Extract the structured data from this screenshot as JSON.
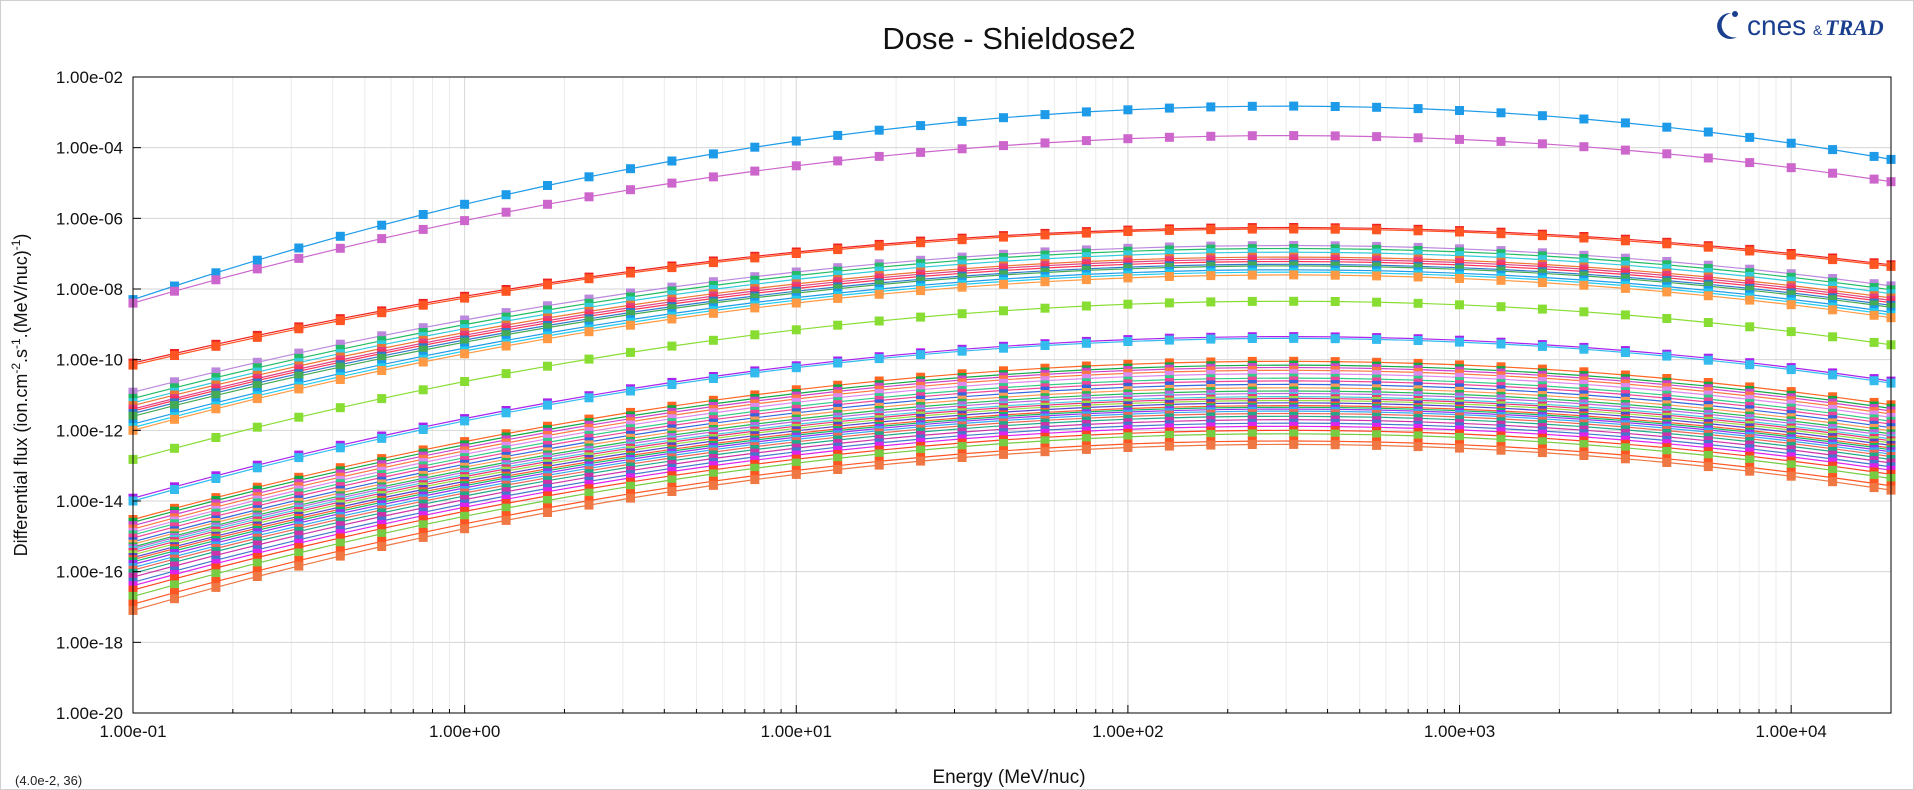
{
  "logo": {
    "brand": "cnes",
    "amp": "&",
    "partner": "TRAD"
  },
  "status": {
    "coords": "(4.0e-2, 36)"
  },
  "chart_data": {
    "type": "line",
    "title": "Dose - Shieldose2",
    "xlabel": "Energy (MeV/nuc)",
    "ylabel_parts": [
      "Differential flux (ion.cm",
      "-2",
      ".s",
      "-1",
      ".(MeV/nuc)",
      "-1",
      ")"
    ],
    "x_scale": "log",
    "y_scale": "log",
    "xlim": [
      0.1,
      20000
    ],
    "ylim": [
      1e-20,
      0.01
    ],
    "x_ticks": [
      0.1,
      1,
      10,
      100,
      1000,
      10000
    ],
    "x_tick_labels": [
      "1.00e-01",
      "1.00e+00",
      "1.00e+01",
      "1.00e+02",
      "1.00e+03",
      "1.00e+04"
    ],
    "y_ticks": [
      0.01,
      0.0001,
      1e-06,
      1e-08,
      1e-10,
      1e-12,
      1e-14,
      1e-16,
      1e-18,
      1e-20
    ],
    "y_tick_labels": [
      "1.00e-02",
      "1.00e-04",
      "1.00e-06",
      "1.00e-08",
      "1.00e-10",
      "1.00e-12",
      "1.00e-14",
      "1.00e-16",
      "1.00e-18",
      "1.00e-20"
    ],
    "grid": true,
    "legend": "none",
    "marker": "square",
    "x": [
      0.1,
      0.1334,
      0.1778,
      0.2371,
      0.3162,
      0.4217,
      0.5623,
      0.7499,
      1.0,
      1.3335,
      1.7783,
      2.3714,
      3.1623,
      4.217,
      5.6234,
      7.4989,
      10.0,
      13.335,
      17.783,
      23.714,
      31.623,
      42.17,
      56.234,
      74.989,
      100.0,
      133.35,
      177.83,
      237.14,
      316.23,
      421.7,
      562.34,
      749.89,
      1000.0,
      1333.5,
      1778.3,
      2371.4,
      3162.3,
      4217.0,
      5623.4,
      7498.9,
      10000.0,
      13335.0,
      17783.0,
      20000.0
    ],
    "series": [
      {
        "color": "#1e9be8",
        "y_at_0.1": 5e-09,
        "peak": 0.0015
      },
      {
        "color": "#cc66cc",
        "y_at_0.1": 4e-09,
        "peak": 0.00022
      },
      {
        "color": "#ee2222",
        "y_at_0.1": 8e-11,
        "peak": 5.5e-07
      },
      {
        "color": "#ff5522",
        "y_at_0.1": 7e-11,
        "peak": 5e-07
      },
      {
        "color": "#bb88dd",
        "y_at_0.1": 1.2e-11,
        "peak": 1.7e-07
      },
      {
        "color": "#22bb66",
        "y_at_0.1": 8e-12,
        "peak": 1.4e-07
      },
      {
        "color": "#33ccdd",
        "y_at_0.1": 6e-12,
        "peak": 1.1e-07
      },
      {
        "color": "#ee7733",
        "y_at_0.1": 5e-12,
        "peak": 8e-08
      },
      {
        "color": "#dd4488",
        "y_at_0.1": 4e-12,
        "peak": 7e-08
      },
      {
        "color": "#ff3355",
        "y_at_0.1": 3.5e-12,
        "peak": 6e-08
      },
      {
        "color": "#3377cc",
        "y_at_0.1": 3e-12,
        "peak": 5e-08
      },
      {
        "color": "#44aa55",
        "y_at_0.1": 2.5e-12,
        "peak": 4.5e-08
      },
      {
        "color": "#1e9be8",
        "y_at_0.1": 1.5e-12,
        "peak": 3.5e-08
      },
      {
        "color": "#22ccee",
        "y_at_0.1": 1.2e-12,
        "peak": 3e-08
      },
      {
        "color": "#ff9944",
        "y_at_0.1": 1e-12,
        "peak": 2.5e-08
      },
      {
        "color": "#88dd33",
        "y_at_0.1": 1.5e-13,
        "peak": 4.5e-09
      },
      {
        "color": "#aa22ee",
        "y_at_0.1": 1.2e-14,
        "peak": 4.5e-10
      },
      {
        "color": "#33bbee",
        "y_at_0.1": 1e-14,
        "peak": 4e-10
      },
      {
        "color": "#ff6622",
        "y_at_0.1": 3e-15,
        "peak": 9e-11
      },
      {
        "color": "#11aa44",
        "y_at_0.1": 2.5e-15,
        "peak": 7e-11
      },
      {
        "color": "#cc44cc",
        "y_at_0.1": 2e-15,
        "peak": 6e-11
      },
      {
        "color": "#ff7744",
        "y_at_0.1": 1.6e-15,
        "peak": 5e-11
      },
      {
        "color": "#dd88ee",
        "y_at_0.1": 1.3e-15,
        "peak": 4e-11
      },
      {
        "color": "#33cc88",
        "y_at_0.1": 1.1e-15,
        "peak": 3e-11
      },
      {
        "color": "#ee4499",
        "y_at_0.1": 9e-16,
        "peak": 2.5e-11
      },
      {
        "color": "#3366dd",
        "y_at_0.1": 7e-16,
        "peak": 2e-11
      },
      {
        "color": "#ff9955",
        "y_at_0.1": 6e-16,
        "peak": 1.6e-11
      },
      {
        "color": "#22bb55",
        "y_at_0.1": 5e-16,
        "peak": 1.3e-11
      },
      {
        "color": "#bb66dd",
        "y_at_0.1": 4.5e-16,
        "peak": 1.1e-11
      },
      {
        "color": "#44ccdd",
        "y_at_0.1": 4e-16,
        "peak": 9e-12
      },
      {
        "color": "#ee3377",
        "y_at_0.1": 3.5e-16,
        "peak": 8e-12
      },
      {
        "color": "#99dd44",
        "y_at_0.1": 3e-16,
        "peak": 7e-12
      },
      {
        "color": "#5544cc",
        "y_at_0.1": 2.5e-16,
        "peak": 6e-12
      },
      {
        "color": "#ff5533",
        "y_at_0.1": 2.2e-16,
        "peak": 5e-12
      },
      {
        "color": "#11bb66",
        "y_at_0.1": 1.9e-16,
        "peak": 4.5e-12
      },
      {
        "color": "#9933ee",
        "y_at_0.1": 1.6e-16,
        "peak": 4e-12
      },
      {
        "color": "#33aaee",
        "y_at_0.1": 1.3e-16,
        "peak": 3.5e-12
      },
      {
        "color": "#ee6655",
        "y_at_0.1": 1.1e-16,
        "peak": 3e-12
      },
      {
        "color": "#22aa88",
        "y_at_0.1": 9e-17,
        "peak": 2.5e-12
      },
      {
        "color": "#cc33aa",
        "y_at_0.1": 7e-17,
        "peak": 2e-12
      },
      {
        "color": "#4477cc",
        "y_at_0.1": 5e-17,
        "peak": 1.6e-12
      },
      {
        "color": "#dd22ee",
        "y_at_0.1": 4e-17,
        "peak": 1.3e-12
      },
      {
        "color": "#ff4422",
        "y_at_0.1": 3e-17,
        "peak": 1e-12
      },
      {
        "color": "#77cc44",
        "y_at_0.1": 2e-17,
        "peak": 8e-13
      },
      {
        "color": "#ff5522",
        "y_at_0.1": 1.2e-17,
        "peak": 5e-13
      },
      {
        "color": "#ee7744",
        "y_at_0.1": 8e-18,
        "peak": 4e-13
      }
    ]
  }
}
